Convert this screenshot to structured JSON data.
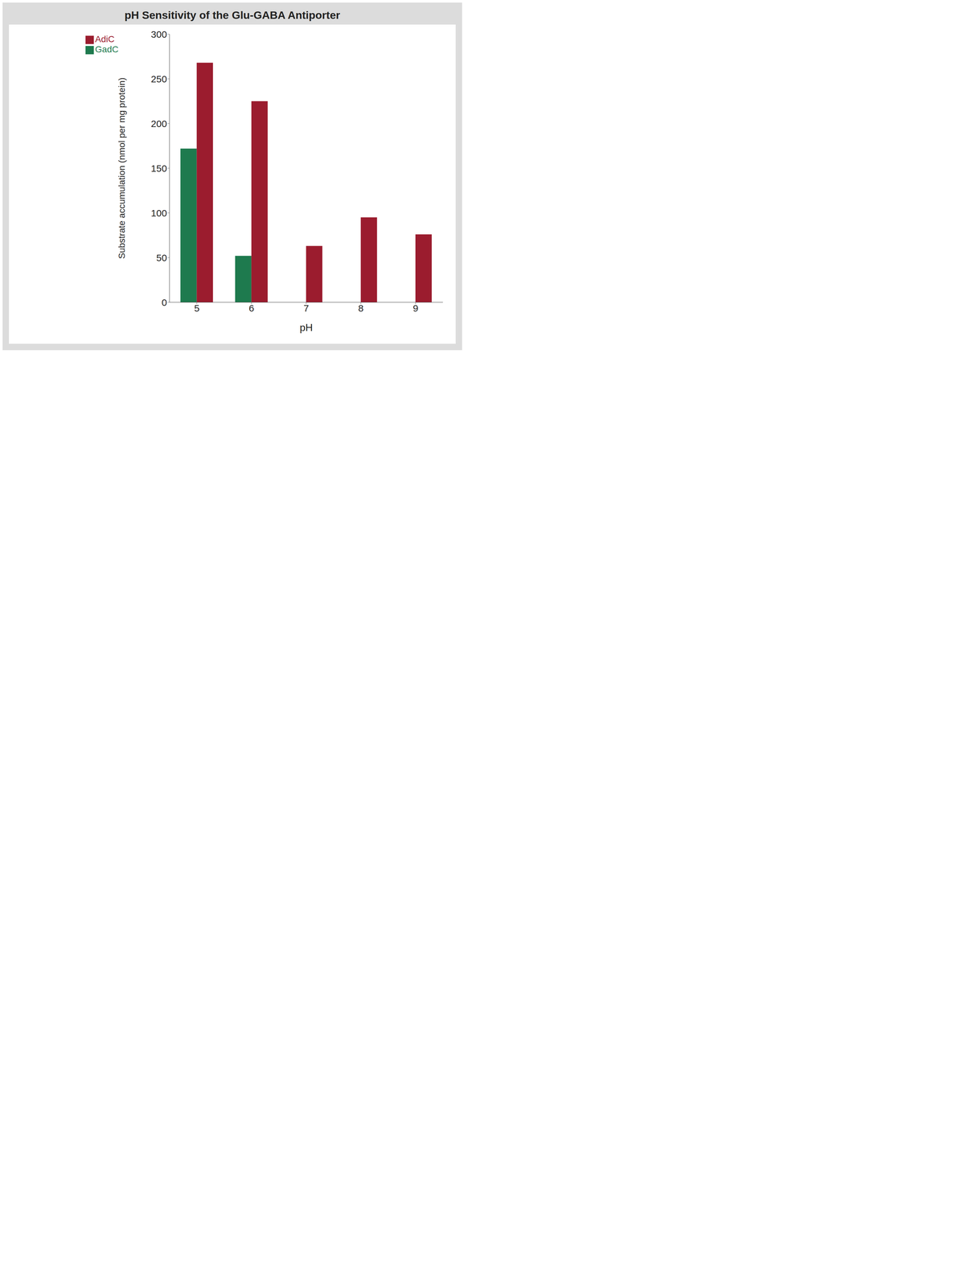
{
  "chart_data": {
    "type": "bar",
    "title": "pH Sensitivity of the Glu-GABA Antiporter",
    "x_label": "pH",
    "y_label": "Substrate accumulation (nmol per mg protein)",
    "categories": [
      "5",
      "6",
      "7",
      "8",
      "9"
    ],
    "series": [
      {
        "name": "GadC",
        "color": "#1e7a4e",
        "values": [
          172,
          52,
          0,
          0,
          0
        ]
      },
      {
        "name": "AdiC",
        "color": "#9b1c2e",
        "values": [
          268,
          225,
          63,
          95,
          76
        ]
      }
    ],
    "ylim": [
      0,
      300
    ],
    "yticks": [
      0,
      50,
      100,
      150,
      200,
      250,
      300
    ],
    "grid": false,
    "legend": "top-left"
  }
}
